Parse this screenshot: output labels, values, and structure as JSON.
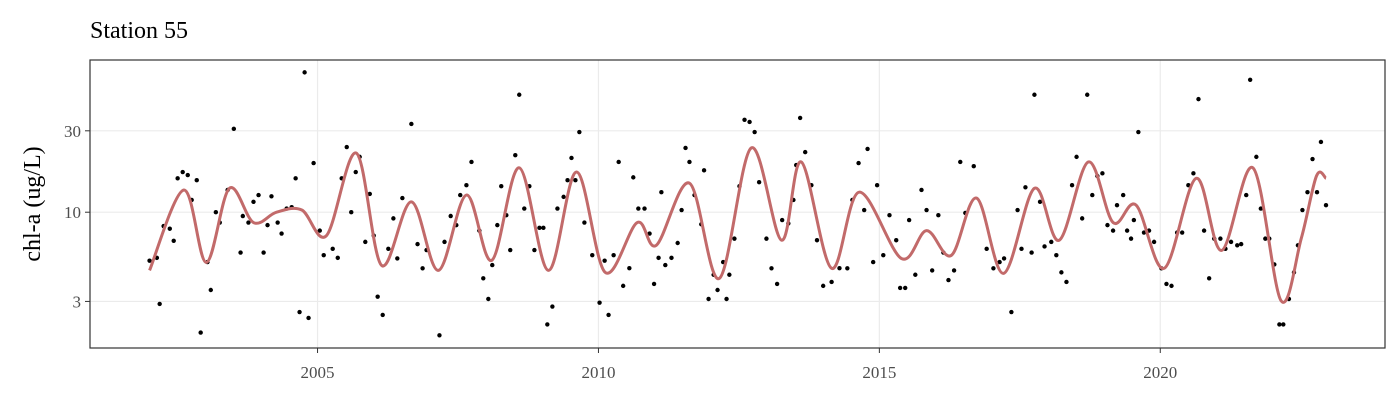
{
  "chart_data": {
    "type": "scatter",
    "title": "Station 55",
    "y_label": "chl-a (ug/L)",
    "xlim": [
      2000.95,
      2024.0
    ],
    "ylim": [
      1.6,
      78
    ],
    "log_y": true,
    "grid": true,
    "xticks": [
      2005,
      2010,
      2015,
      2020
    ],
    "yticks": [
      3,
      10,
      30
    ],
    "series": [
      {
        "type": "scatter",
        "color": "#000000",
        "x": [
          2002.01,
          2002.14,
          2002.19,
          2002.26,
          2002.37,
          2002.44,
          2002.51,
          2002.6,
          2002.69,
          2002.76,
          2002.85,
          2002.92,
          2003.04,
          2003.1,
          2003.19,
          2003.26,
          2003.4,
          2003.51,
          2003.63,
          2003.67,
          2003.77,
          2003.86,
          2003.95,
          2004.04,
          2004.11,
          2004.18,
          2004.29,
          2004.36,
          2004.45,
          2004.54,
          2004.61,
          2004.68,
          2004.77,
          2004.84,
          2004.93,
          2005.04,
          2005.11,
          2005.27,
          2005.36,
          2005.43,
          2005.52,
          2005.6,
          2005.68,
          2005.75,
          2005.85,
          2005.93,
          2006.0,
          2006.07,
          2006.16,
          2006.26,
          2006.35,
          2006.42,
          2006.51,
          2006.67,
          2006.78,
          2006.87,
          2006.94,
          2007.17,
          2007.26,
          2007.37,
          2007.47,
          2007.54,
          2007.65,
          2007.74,
          2007.88,
          2007.95,
          2008.04,
          2008.11,
          2008.2,
          2008.27,
          2008.36,
          2008.43,
          2008.52,
          2008.59,
          2008.68,
          2008.77,
          2008.86,
          2008.95,
          2009.02,
          2009.09,
          2009.18,
          2009.27,
          2009.38,
          2009.45,
          2009.52,
          2009.59,
          2009.66,
          2009.75,
          2009.89,
          2010.02,
          2010.11,
          2010.18,
          2010.27,
          2010.36,
          2010.44,
          2010.55,
          2010.62,
          2010.71,
          2010.82,
          2010.91,
          2010.99,
          2011.07,
          2011.12,
          2011.19,
          2011.3,
          2011.41,
          2011.48,
          2011.55,
          2011.62,
          2011.71,
          2011.83,
          2011.88,
          2011.96,
          2012.05,
          2012.12,
          2012.22,
          2012.28,
          2012.33,
          2012.42,
          2012.51,
          2012.6,
          2012.69,
          2012.78,
          2012.86,
          2012.99,
          2013.08,
          2013.18,
          2013.27,
          2013.38,
          2013.47,
          2013.52,
          2013.59,
          2013.68,
          2013.79,
          2013.89,
          2014.0,
          2014.15,
          2014.29,
          2014.43,
          2014.52,
          2014.63,
          2014.73,
          2014.79,
          2014.89,
          2014.96,
          2015.07,
          2015.18,
          2015.3,
          2015.37,
          2015.46,
          2015.53,
          2015.64,
          2015.75,
          2015.84,
          2015.94,
          2016.05,
          2016.14,
          2016.23,
          2016.33,
          2016.44,
          2016.53,
          2016.68,
          2016.91,
          2017.03,
          2017.14,
          2017.22,
          2017.35,
          2017.46,
          2017.53,
          2017.6,
          2017.71,
          2017.76,
          2017.86,
          2017.94,
          2018.06,
          2018.15,
          2018.24,
          2018.33,
          2018.43,
          2018.51,
          2018.61,
          2018.7,
          2018.79,
          2018.88,
          2018.97,
          2019.06,
          2019.16,
          2019.23,
          2019.34,
          2019.41,
          2019.48,
          2019.53,
          2019.61,
          2019.71,
          2019.8,
          2019.89,
          2020.02,
          2020.11,
          2020.2,
          2020.3,
          2020.39,
          2020.5,
          2020.59,
          2020.68,
          2020.78,
          2020.87,
          2020.96,
          2021.07,
          2021.16,
          2021.26,
          2021.37,
          2021.44,
          2021.53,
          2021.6,
          2021.71,
          2021.79,
          2021.87,
          2021.94,
          2022.03,
          2022.12,
          2022.19,
          2022.29,
          2022.38,
          2022.45,
          2022.53,
          2022.62,
          2022.71,
          2022.79,
          2022.86,
          2022.95
        ],
        "values": [
          5.2,
          5.4,
          2.9,
          8.3,
          8.0,
          6.8,
          15.8,
          17.2,
          16.5,
          11.8,
          15.4,
          1.97,
          5.1,
          3.5,
          10,
          8.7,
          13.5,
          30.8,
          5.8,
          9.5,
          8.7,
          11.5,
          12.6,
          5.8,
          8.4,
          12.4,
          8.7,
          7.5,
          10.5,
          10.7,
          15.8,
          2.6,
          66,
          2.4,
          19.4,
          7.8,
          5.6,
          6.1,
          5.4,
          15.8,
          24.1,
          10,
          17.2,
          21.1,
          6.7,
          12.8,
          7.3,
          3.2,
          2.5,
          6.1,
          9.2,
          5.36,
          12.1,
          32.9,
          6.5,
          4.69,
          6.0,
          1.9,
          6.7,
          9.5,
          8.4,
          12.6,
          14.4,
          19.7,
          7.8,
          4.1,
          3.1,
          4.9,
          8.4,
          14.2,
          9.6,
          6.0,
          21.6,
          48.8,
          10.5,
          14.2,
          6.0,
          8.1,
          8.1,
          2.2,
          2.8,
          10.5,
          12.3,
          15.4,
          20.8,
          15.4,
          29.5,
          8.7,
          5.6,
          2.95,
          5.2,
          2.5,
          5.6,
          19.7,
          3.7,
          4.7,
          16.0,
          10.5,
          10.5,
          7.5,
          3.8,
          5.4,
          13.1,
          4.9,
          5.4,
          6.6,
          10.3,
          23.8,
          19.7,
          12.6,
          8.5,
          17.6,
          3.1,
          4.3,
          3.5,
          5.1,
          3.1,
          4.3,
          7.0,
          14.2,
          34.8,
          33.8,
          29.5,
          15.0,
          7.0,
          4.69,
          3.8,
          9.0,
          8.6,
          11.8,
          18.9,
          35.7,
          22.5,
          14.4,
          6.85,
          3.7,
          3.9,
          4.7,
          4.69,
          11.8,
          19.4,
          10.3,
          23.5,
          5.1,
          14.4,
          5.6,
          9.6,
          6.85,
          3.6,
          3.6,
          9.0,
          4.3,
          13.5,
          10.3,
          4.56,
          9.6,
          5.8,
          4.0,
          4.56,
          19.7,
          9.9,
          18.6,
          6.1,
          4.69,
          5.1,
          5.36,
          2.6,
          10.3,
          6.1,
          14.0,
          5.8,
          48.8,
          11.5,
          6.3,
          6.7,
          5.6,
          4.44,
          3.9,
          14.4,
          21.1,
          9.2,
          48.8,
          12.6,
          16.3,
          16.9,
          8.4,
          7.8,
          11.0,
          12.6,
          7.8,
          7.0,
          9.0,
          29.5,
          7.6,
          7.8,
          6.7,
          4.69,
          3.8,
          3.7,
          7.6,
          7.6,
          14.4,
          16.9,
          46,
          7.8,
          4.1,
          7.0,
          7.0,
          6.1,
          6.7,
          6.4,
          6.5,
          12.6,
          59.7,
          21.1,
          10.5,
          7.0,
          7.0,
          4.94,
          2.2,
          2.2,
          3.1,
          4.44,
          6.4,
          10.3,
          13.1,
          20.5,
          13.1,
          25.8,
          11.0
        ]
      },
      {
        "type": "line",
        "color": "#c26a6a",
        "x": [
          2002.01,
          2002.62,
          2003.02,
          2003.43,
          2003.86,
          2004.27,
          2004.72,
          2005.16,
          2005.69,
          2006.14,
          2006.67,
          2007.15,
          2007.65,
          2008.1,
          2008.59,
          2009.11,
          2009.61,
          2010.12,
          2010.69,
          2011.03,
          2011.62,
          2012.15,
          2012.72,
          2013.26,
          2013.61,
          2014.15,
          2014.64,
          2015.39,
          2015.84,
          2016.28,
          2016.73,
          2017.21,
          2017.76,
          2018.2,
          2018.72,
          2019.16,
          2019.57,
          2020.07,
          2020.64,
          2021.09,
          2021.65,
          2022.15,
          2022.51,
          2022.78,
          2022.95
        ],
        "values": [
          4.56,
          13.5,
          5.08,
          13.8,
          8.7,
          10,
          10.3,
          7.3,
          22.2,
          4.88,
          11.5,
          4.56,
          12.6,
          5.22,
          18.2,
          4.56,
          17.2,
          4.44,
          8.7,
          6.4,
          14.8,
          4.09,
          23.8,
          6.85,
          19.7,
          4.69,
          13.1,
          5.36,
          7.8,
          5.58,
          12.1,
          4.38,
          13.8,
          6.85,
          19.7,
          8.7,
          11,
          4.69,
          15.8,
          5.97,
          18.2,
          3.03,
          7.03,
          16.3,
          15.8
        ]
      }
    ]
  }
}
